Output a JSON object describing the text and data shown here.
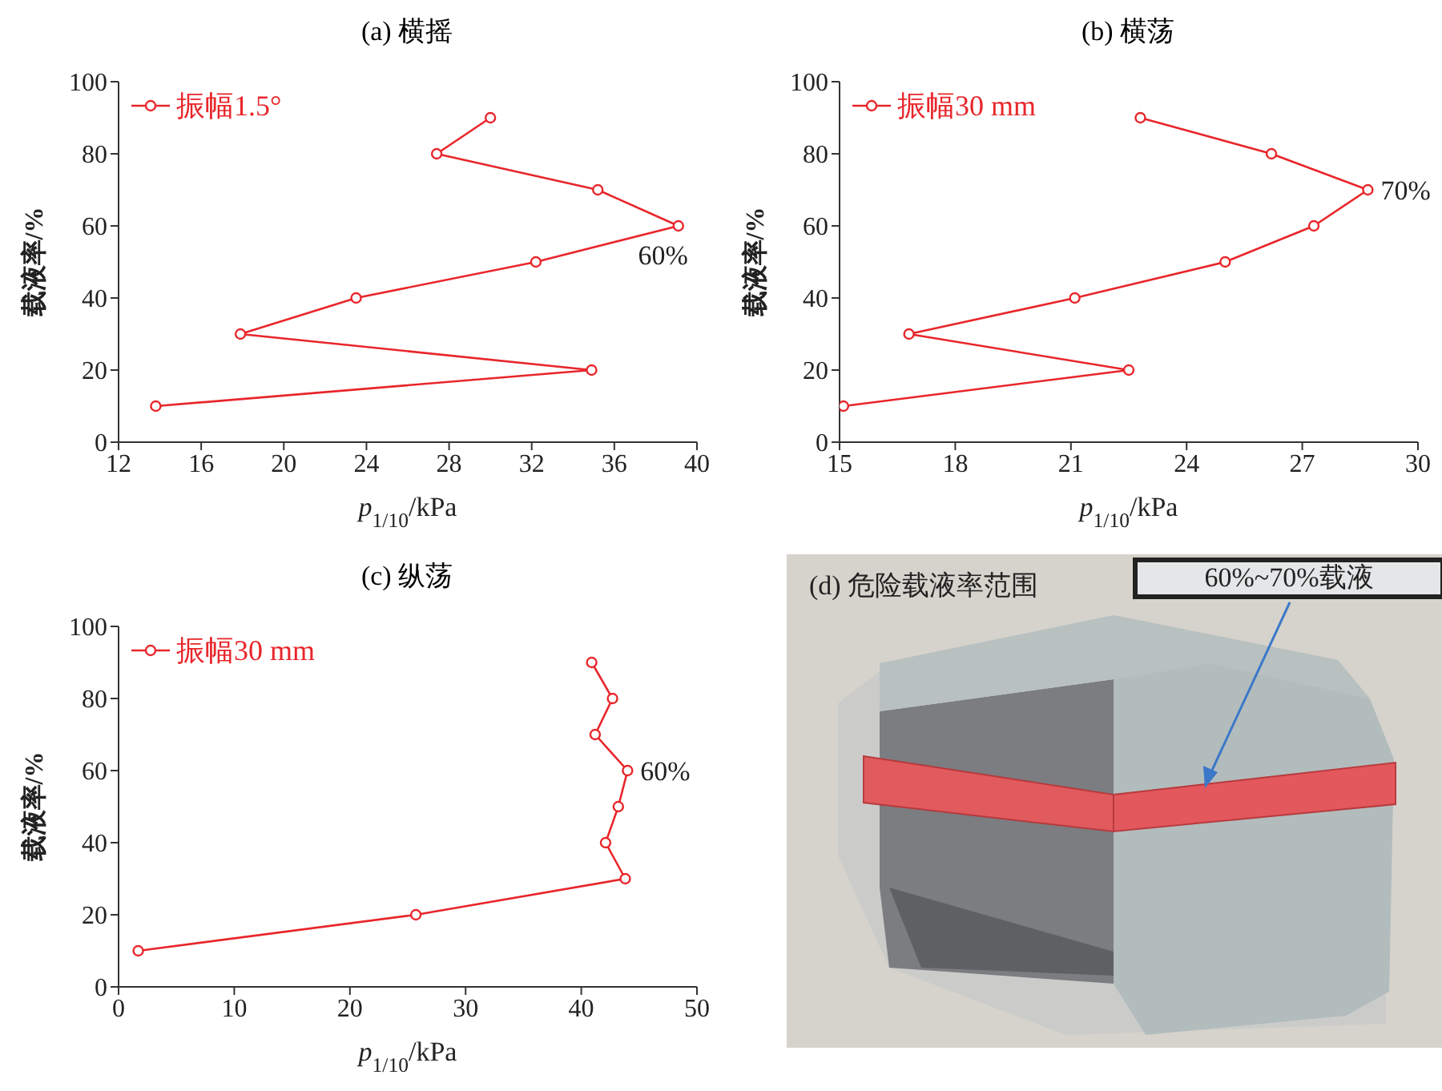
{
  "chart_data": [
    {
      "type": "line",
      "title": "(a) 横摇",
      "xlabel": "p$_{1/10}$/kPa",
      "ylabel": "载液率/%",
      "xlim": [
        12,
        40
      ],
      "xticks": [
        12,
        16,
        20,
        24,
        28,
        32,
        36,
        40
      ],
      "ylim": [
        0,
        100
      ],
      "yticks": [
        0,
        20,
        40,
        60,
        80,
        100
      ],
      "marker": "circle",
      "legend": "top left",
      "grid": false,
      "series": [
        {
          "name": "振幅1.5°",
          "color": "#e8262b",
          "x": [
            13.8,
            34.9,
            17.9,
            23.5,
            32.2,
            39.1,
            35.2,
            27.4,
            30.0
          ],
          "values": [
            10,
            20,
            30,
            40,
            50,
            60,
            70,
            80,
            90
          ]
        }
      ],
      "annotations": [
        {
          "text": "60%",
          "x": 39.1,
          "y": 60
        }
      ]
    },
    {
      "type": "line",
      "title": "(b) 横荡",
      "xlabel": "p$_{1/10}$/kPa",
      "ylabel": "载液率/%",
      "xlim": [
        15,
        30
      ],
      "xticks": [
        15,
        18,
        21,
        24,
        27,
        30
      ],
      "ylim": [
        0,
        100
      ],
      "yticks": [
        0,
        20,
        40,
        60,
        80,
        100
      ],
      "marker": "circle",
      "legend": "top left",
      "grid": false,
      "series": [
        {
          "name": "振幅30 mm",
          "color": "#e8262b",
          "x": [
            15.1,
            22.5,
            16.8,
            21.1,
            25.0,
            27.3,
            28.7,
            26.2,
            22.8
          ],
          "values": [
            10,
            20,
            30,
            40,
            50,
            60,
            70,
            80,
            90
          ]
        }
      ],
      "annotations": [
        {
          "text": "70%",
          "x": 28.7,
          "y": 70
        }
      ]
    },
    {
      "type": "line",
      "title": "(c) 纵荡",
      "xlabel": "p$_{1/10}$/kPa",
      "ylabel": "载液率/%",
      "xlim": [
        0,
        50
      ],
      "xticks": [
        0,
        10,
        20,
        30,
        40,
        50
      ],
      "ylim": [
        0,
        100
      ],
      "yticks": [
        0,
        20,
        40,
        60,
        80,
        100
      ],
      "marker": "circle",
      "legend": "top left",
      "grid": false,
      "series": [
        {
          "name": "振幅30 mm",
          "color": "#e8262b",
          "x": [
            1.7,
            25.7,
            43.8,
            42.1,
            43.2,
            44.0,
            41.2,
            42.7,
            40.9
          ],
          "values": [
            10,
            20,
            30,
            40,
            50,
            60,
            70,
            80,
            90
          ]
        }
      ],
      "annotations": [
        {
          "text": "60%",
          "x": 44.0,
          "y": 60
        }
      ]
    },
    {
      "type": "other",
      "title": "(d) 危险载液率范围",
      "annotations": [
        "60%~70%载液"
      ]
    }
  ]
}
